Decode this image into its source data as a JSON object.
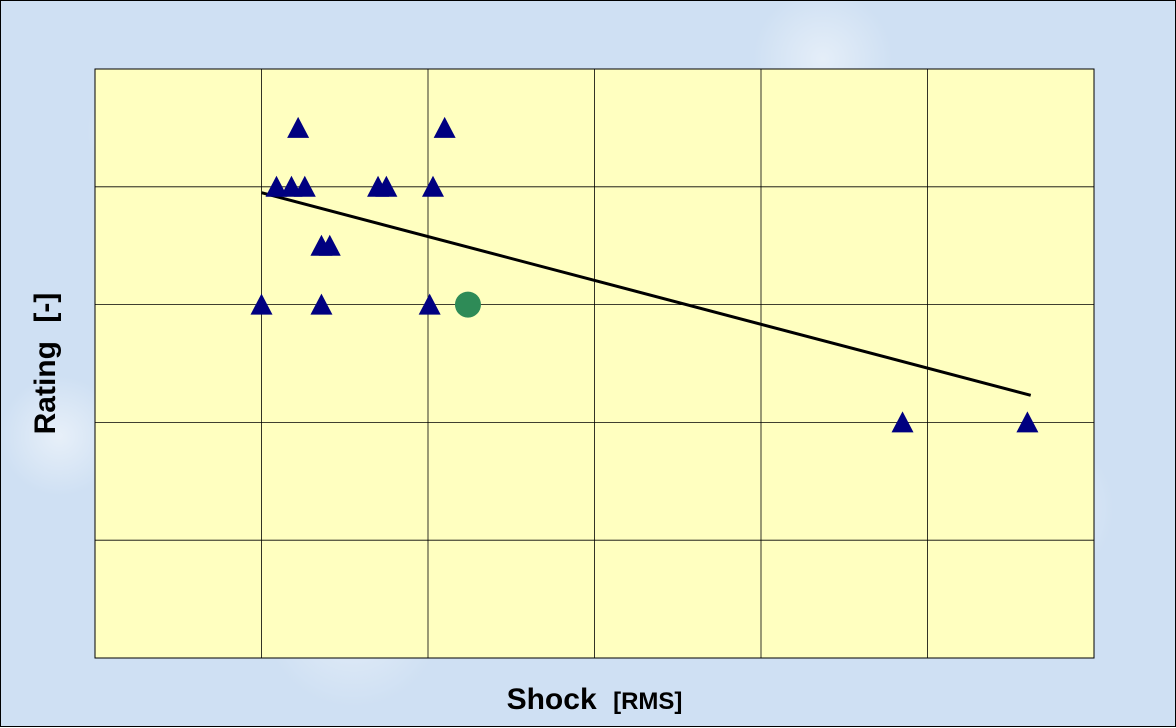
{
  "colors": {
    "plot_background": "#ffffc0",
    "grid": "#000000",
    "marker_triangle": "#000080",
    "marker_highlight": "#2e8b57",
    "trendline": "#000000",
    "frame_background": "#cfe0f3"
  },
  "chart_data": {
    "type": "scatter",
    "title": "",
    "xlabel": "Shock",
    "xlabel_unit": "[RMS]",
    "ylabel": "Rating",
    "ylabel_unit": "[-]",
    "xlim": [
      0,
      6
    ],
    "ylim": [
      0,
      5
    ],
    "grid": true,
    "tick_labels_visible": false,
    "series": [
      {
        "marker": "triangle",
        "points": [
          [
            1.22,
            4.5
          ],
          [
            2.1,
            4.5
          ],
          [
            1.09,
            4.0
          ],
          [
            1.18,
            4.0
          ],
          [
            1.26,
            4.0
          ],
          [
            1.7,
            4.0
          ],
          [
            1.75,
            4.0
          ],
          [
            2.03,
            4.0
          ],
          [
            1.36,
            3.5
          ],
          [
            1.41,
            3.5
          ],
          [
            1.0,
            3.0
          ],
          [
            1.36,
            3.0
          ],
          [
            2.01,
            3.0
          ],
          [
            4.85,
            2.0
          ],
          [
            5.6,
            2.0
          ]
        ]
      },
      {
        "marker": "circle",
        "points": [
          [
            2.24,
            3.0
          ]
        ]
      }
    ],
    "trendline": {
      "from": [
        1.0,
        3.95
      ],
      "to": [
        5.62,
        2.23
      ]
    }
  },
  "axis_titles": {
    "x": "Shock",
    "x_unit": "[RMS]",
    "y": "Rating",
    "y_unit": "[-]"
  }
}
